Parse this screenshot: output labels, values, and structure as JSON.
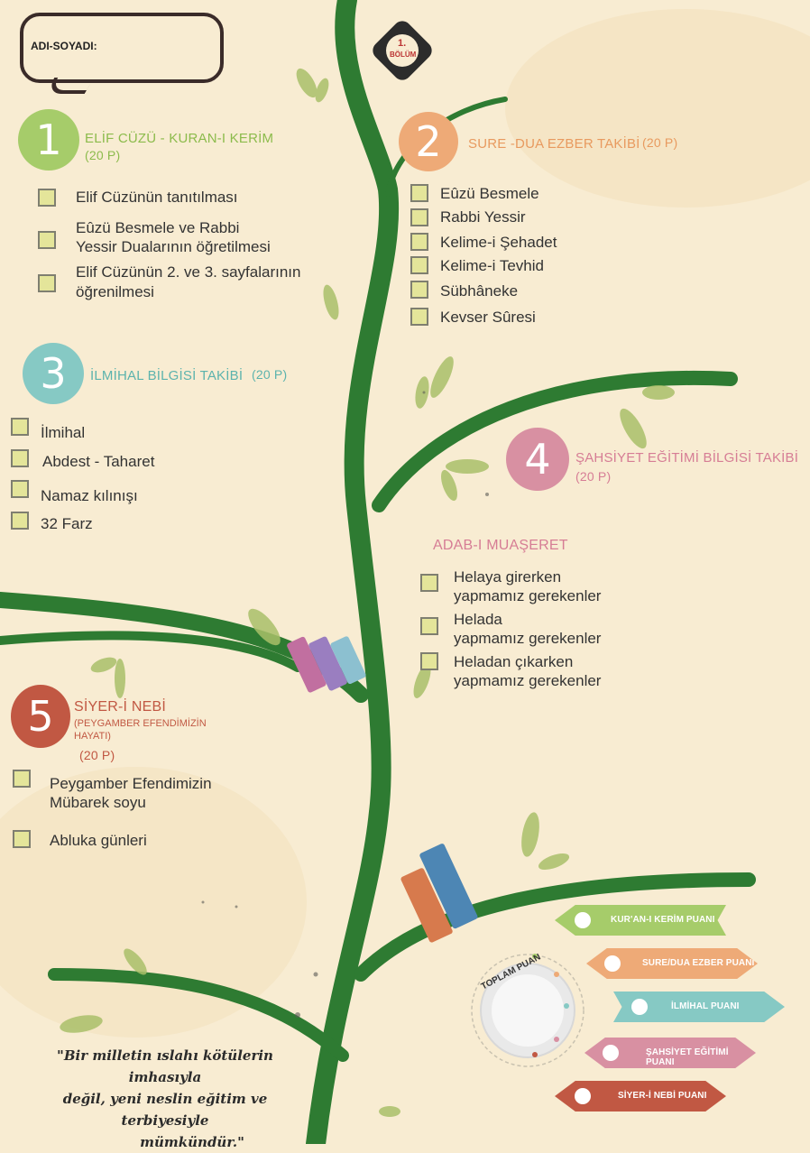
{
  "header": {
    "name_label": "ADI-SOYADI:",
    "badge_num": "1.",
    "badge_text": "BÖLÜM"
  },
  "colors": {
    "green": "#a6cc6a",
    "orange": "#eeaa77",
    "teal": "#86c9c4",
    "pink": "#d890a2",
    "red": "#c15843",
    "tree": "#2e7b32"
  },
  "sections": {
    "s1": {
      "num": "1",
      "title": "ELİF CÜZÜ  - KURAN-I KERİM",
      "points": "(20 P)",
      "items": [
        "Elif Cüzünün tanıtılması",
        "Eûzü Besmele ve Rabbi",
        "Yessir Dualarının öğretilmesi",
        "Elif Cüzünün 2. ve 3. sayfalarının",
        "öğrenilmesi"
      ]
    },
    "s2": {
      "num": "2",
      "title": "SURE -DUA EZBER TAKİBİ",
      "points": "(20 P)",
      "items": [
        "Eûzü Besmele",
        "Rabbi Yessir",
        "Kelime-i Şehadet",
        "Kelime-i Tevhid",
        "Sübhâneke",
        "Kevser Sûresi"
      ]
    },
    "s3": {
      "num": "3",
      "title": "İLMİHAL BİLGİSİ TAKİBİ",
      "points": "(20 P)",
      "items": [
        "İlmihal",
        "Abdest - Taharet",
        "Namaz kılınışı",
        "32 Farz"
      ]
    },
    "s4": {
      "num": "4",
      "title": "ŞAHSİYET EĞİTİMİ BİLGİSİ TAKİBİ",
      "points": "(20 P)",
      "subtitle": "ADAB-I MUAŞERET",
      "items": [
        "Helaya girerken",
        "yapmamız gerekenler",
        "Helada",
        "yapmamız gerekenler",
        "Heladan çıkarken",
        "yapmamız gerekenler"
      ]
    },
    "s5": {
      "num": "5",
      "title": "SİYER-İ NEBİ",
      "subtitle": "(PEYGAMBER EFENDİMİZİN",
      "subtitle2": "HAYATI)",
      "points": "(20 P)",
      "items": [
        "Peygamber Efendimizin",
        "Mübarek soyu",
        "Abluka günleri"
      ]
    }
  },
  "scores": {
    "total_label": "TOPLAM PUAN",
    "items": [
      "KUR'AN-I KERİM PUANI",
      "SURE/DUA EZBER PUANI",
      "İLMİHAL PUANI",
      "ŞAHSİYET EĞİTİMİ PUANI",
      "SİYER-İ NEBİ PUANI"
    ]
  },
  "quote": {
    "line1": "\"Bir milletin ıslahı kötülerin imhasıyla",
    "line2": "değil, yeni neslin eğitim ve terbiyesiyle",
    "line3": "mümkündür.\""
  }
}
